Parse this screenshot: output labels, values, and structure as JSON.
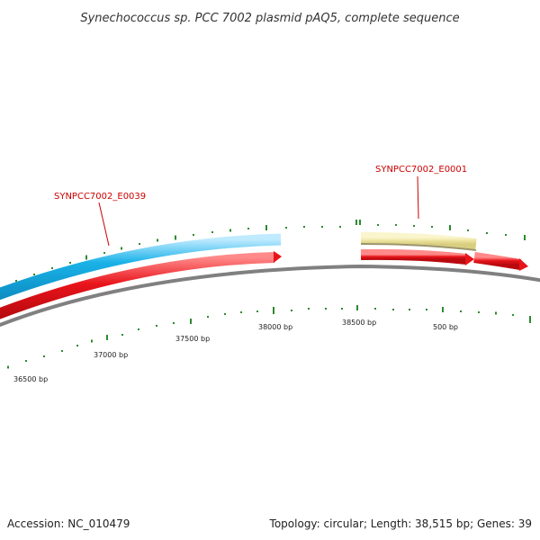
{
  "title": "Synechococcus sp. PCC 7002 plasmid pAQ5, complete sequence",
  "footer": {
    "accession": "Accession: NC_010479",
    "summary": "Topology: circular; Length: 38,515 bp; Genes: 39"
  },
  "genes": [
    {
      "name": "SYNPCC7002_E0039",
      "color": "#1ab2e8"
    },
    {
      "name": "SYNPCC7002_E0001",
      "color": "#ece39e"
    }
  ],
  "tick_labels": [
    "36500 bp",
    "37000 bp",
    "37500 bp",
    "38000 bp",
    "38500 bp",
    "500 bp"
  ],
  "colors": {
    "backbone": "#808080",
    "forward_gene": "#1ab2e8",
    "forward_gene_rna": "#ece39e",
    "cds": "#e8141a",
    "gc_ticks": "#2e8b2e",
    "label_line": "#cc0000"
  }
}
